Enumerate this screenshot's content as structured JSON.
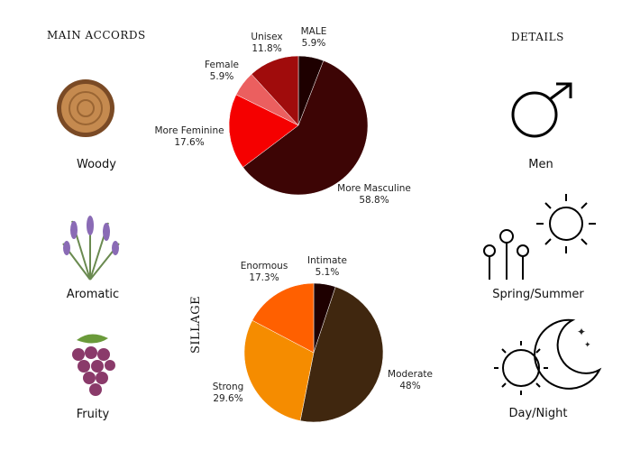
{
  "main_accords": {
    "title": "MAIN ACCORDS",
    "items": [
      {
        "label": "Woody",
        "icon": "wood-slice-icon"
      },
      {
        "label": "Aromatic",
        "icon": "lavender-icon"
      },
      {
        "label": "Fruity",
        "icon": "grapes-icon"
      }
    ]
  },
  "details": {
    "title": "DETAILS",
    "items": [
      {
        "label": "Men",
        "icon": "male-symbol-icon"
      },
      {
        "label": "Spring/Summer",
        "icon": "flower-sun-icon"
      },
      {
        "label": "Day/Night",
        "icon": "sun-moon-icon"
      }
    ]
  },
  "chart_data": [
    {
      "type": "pie",
      "title": "",
      "slices": [
        {
          "label": "MALE",
          "value": 5.9,
          "display": "5.9%",
          "color": "#1e0000"
        },
        {
          "label": "More Masculine",
          "value": 58.8,
          "display": "58.8%",
          "color": "#3d0505"
        },
        {
          "label": "More Feminine",
          "value": 17.6,
          "display": "17.6%",
          "color": "#f50000"
        },
        {
          "label": "Female",
          "value": 5.9,
          "display": "5.9%",
          "color": "#eb5f5f"
        },
        {
          "label": "Unisex",
          "value": 11.8,
          "display": "11.8%",
          "color": "#a00c0c"
        }
      ]
    },
    {
      "type": "pie",
      "title": "SILLAGE",
      "slices": [
        {
          "label": "Intimate",
          "value": 5.1,
          "display": "5.1%",
          "color": "#1e0000"
        },
        {
          "label": "Moderate",
          "value": 48,
          "display": "48%",
          "color": "#40270f"
        },
        {
          "label": "Strong",
          "value": 29.6,
          "display": "29.6%",
          "color": "#f58c00"
        },
        {
          "label": "Enormous",
          "value": 17.3,
          "display": "17.3%",
          "color": "#ff6000"
        }
      ]
    }
  ]
}
